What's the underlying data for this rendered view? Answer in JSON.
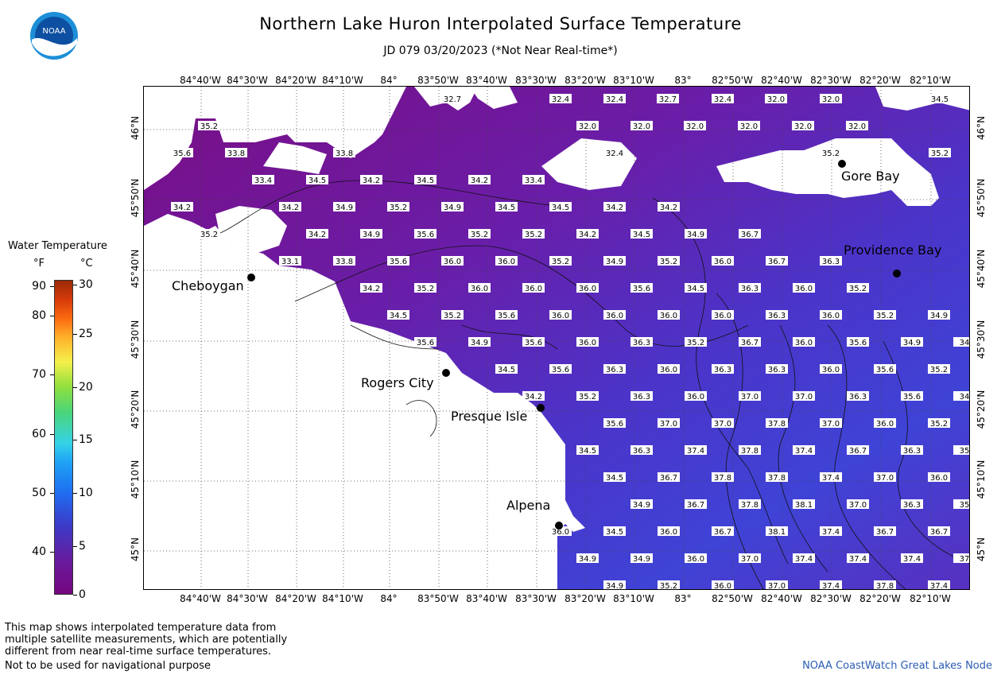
{
  "header": {
    "title": "Northern Lake Huron Interpolated Surface Temperature",
    "subtitle": "JD 079 03/20/2023 (*Not Near Real-time*)",
    "logo_text": "NOAA"
  },
  "longitude_labels": [
    "84°40'W",
    "84°30'W",
    "84°20'W",
    "84°10'W",
    "84°",
    "83°50'W",
    "83°40'W",
    "83°30'W",
    "83°20'W",
    "83°10'W",
    "83°",
    "82°50'W",
    "82°40'W",
    "82°30'W",
    "82°20'W",
    "82°10'W"
  ],
  "latitude_labels": [
    "46°N",
    "45°50'N",
    "45°40'N",
    "45°30'N",
    "45°20'N",
    "45°10'N",
    "45°N"
  ],
  "cities": [
    {
      "name": "Cheboygan"
    },
    {
      "name": "Rogers City"
    },
    {
      "name": "Presque Isle"
    },
    {
      "name": "Alpena"
    },
    {
      "name": "Gore Bay"
    },
    {
      "name": "Providence Bay"
    }
  ],
  "legend": {
    "title": "Water Temperature",
    "unit_f": "°F",
    "unit_c": "°C",
    "f_ticks": [
      "90",
      "80",
      "70",
      "60",
      "50",
      "40"
    ],
    "c_ticks": [
      "30",
      "25",
      "20",
      "15",
      "10",
      "5",
      "0"
    ]
  },
  "temperature_rows": [
    [
      "32.7",
      "32.4",
      "32.4",
      "32.7",
      "32.4",
      "32.0",
      "32.0",
      "34.5"
    ],
    [
      "35.2",
      "32.0",
      "32.0",
      "32.0",
      "32.0",
      "32.0",
      "32.0"
    ],
    [
      "35.6",
      "33.8",
      "33.8",
      "32.4",
      "35.2",
      "35.2"
    ],
    [
      "33.4",
      "34.5",
      "34.2",
      "34.5",
      "34.2",
      "33.4"
    ],
    [
      "34.2",
      "34.2",
      "34.9",
      "35.2",
      "34.9",
      "34.5",
      "34.5",
      "34.2",
      "34.2"
    ],
    [
      "35.2",
      "34.2",
      "34.9",
      "35.6",
      "35.2",
      "35.2",
      "34.2",
      "34.5",
      "34.9",
      "36.7"
    ],
    [
      "33.1",
      "33.8",
      "35.6",
      "36.0",
      "36.0",
      "35.2",
      "34.9",
      "35.2",
      "36.0",
      "36.7",
      "36.3"
    ],
    [
      "34.2",
      "35.2",
      "36.0",
      "36.0",
      "36.0",
      "35.6",
      "34.5",
      "36.3",
      "36.0",
      "35.2"
    ],
    [
      "34.5",
      "35.2",
      "35.6",
      "36.0",
      "36.0",
      "36.0",
      "36.0",
      "36.3",
      "36.0",
      "35.2",
      "34.9"
    ],
    [
      "35.6",
      "34.9",
      "35.6",
      "36.0",
      "36.3",
      "35.2",
      "36.7",
      "36.0",
      "35.6",
      "34.9",
      "34"
    ],
    [
      "34.5",
      "35.6",
      "36.3",
      "36.0",
      "36.3",
      "36.3",
      "36.0",
      "35.6",
      "35.2"
    ],
    [
      "34.2",
      "35.2",
      "36.3",
      "36.0",
      "37.0",
      "37.0",
      "36.3",
      "35.6",
      "34"
    ],
    [
      "35.6",
      "37.0",
      "37.0",
      "37.8",
      "37.0",
      "36.0",
      "35.2"
    ],
    [
      "34.5",
      "36.3",
      "37.4",
      "37.8",
      "37.4",
      "36.7",
      "36.3",
      "35"
    ],
    [
      "34.5",
      "36.7",
      "37.8",
      "37.8",
      "37.4",
      "37.0",
      "36.0"
    ],
    [
      "34.9",
      "36.7",
      "37.8",
      "38.1",
      "37.0",
      "36.3",
      "35"
    ],
    [
      "36.0",
      "34.5",
      "36.0",
      "36.7",
      "38.1",
      "37.4",
      "36.7",
      "36.7"
    ],
    [
      "34.9",
      "34.9",
      "36.0",
      "37.0",
      "37.4",
      "37.4",
      "37.4",
      "37"
    ],
    [
      "34.9",
      "35.2",
      "36.0",
      "37.0",
      "37.4",
      "37.8",
      "37.4"
    ]
  ],
  "footer": {
    "note_lines": [
      "This map shows interpolated temperature data from",
      "multiple satellite measurements, which are potentially",
      "different from near real-time surface temperatures."
    ],
    "nav_warning": "Not to be used for navigational purpose",
    "credit": "NOAA CoastWatch Great Lakes Node"
  },
  "colors": {
    "lake_dark": "#6d1590",
    "lake_warm": "#4a35c8",
    "land": "#ffffff",
    "credit": "#2b5db3"
  }
}
